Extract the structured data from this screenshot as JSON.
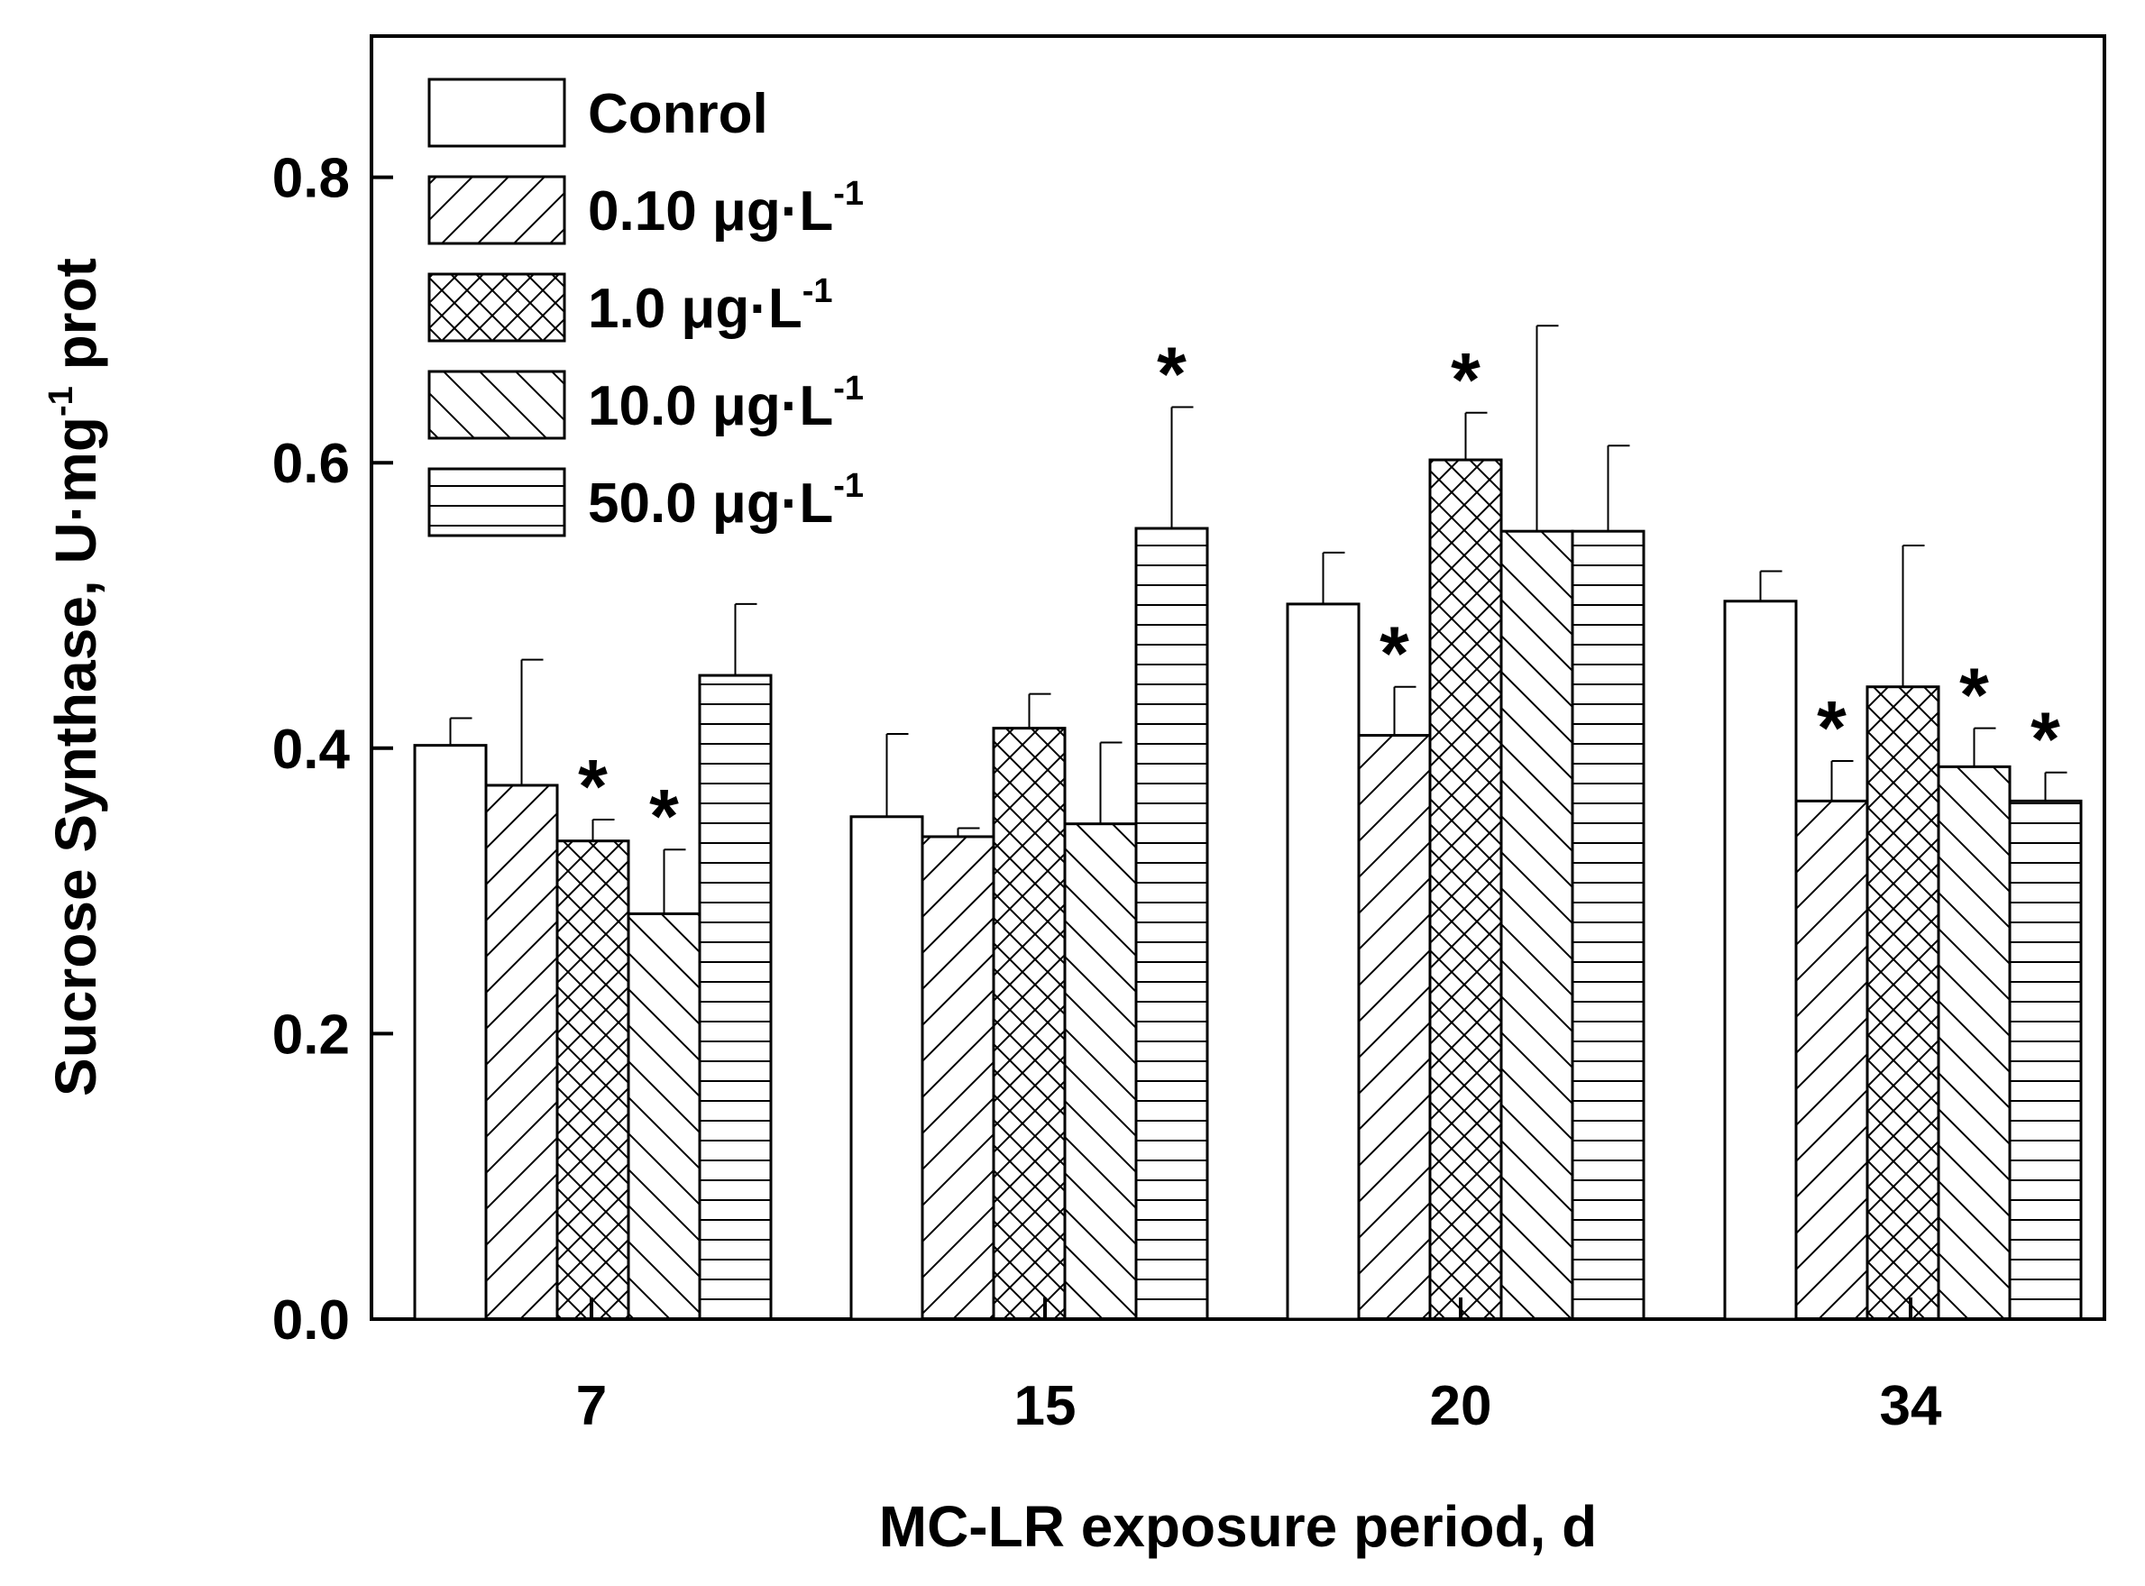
{
  "chart_data": {
    "type": "bar",
    "xlabel": "MC-LR exposure period, d",
    "ylabel_main": "Sucrose Synthase, U·mg",
    "ylabel_sup": "-1",
    "ylabel_tail": " prot",
    "ylim": [
      0,
      0.88
    ],
    "yticks": [
      0.0,
      0.2,
      0.4,
      0.6,
      0.8
    ],
    "ytick_labels": [
      "0.0",
      "0.2",
      "0.4",
      "0.6",
      "0.8"
    ],
    "categories": [
      "7",
      "15",
      "20",
      "34"
    ],
    "legend_position": "top-left",
    "grid": false,
    "unit_main": " μg·L",
    "unit_sup": "-1",
    "significance_marker": "*",
    "series": [
      {
        "name": "Conrol",
        "pattern": "none",
        "values": [
          0.402,
          0.352,
          0.501,
          0.503
        ],
        "errors": [
          0.019,
          0.058,
          0.036,
          0.021
        ],
        "significant": [
          false,
          false,
          false,
          false
        ]
      },
      {
        "name": "0.10",
        "pattern": "diag-up",
        "values": [
          0.374,
          0.338,
          0.409,
          0.363
        ],
        "errors": [
          0.088,
          0.006,
          0.034,
          0.028
        ],
        "significant": [
          false,
          false,
          true,
          true
        ]
      },
      {
        "name": "1.0",
        "pattern": "cross",
        "values": [
          0.335,
          0.414,
          0.602,
          0.443
        ],
        "errors": [
          0.015,
          0.024,
          0.033,
          0.099
        ],
        "significant": [
          true,
          false,
          true,
          false
        ]
      },
      {
        "name": "10.0",
        "pattern": "diag-down",
        "values": [
          0.284,
          0.347,
          0.552,
          0.387
        ],
        "errors": [
          0.045,
          0.057,
          0.144,
          0.027
        ],
        "significant": [
          true,
          false,
          false,
          true
        ]
      },
      {
        "name": "50.0",
        "pattern": "horizontal",
        "values": [
          0.451,
          0.554,
          0.552,
          0.363
        ],
        "errors": [
          0.05,
          0.085,
          0.06,
          0.02
        ],
        "significant": [
          false,
          true,
          false,
          true
        ]
      }
    ]
  }
}
